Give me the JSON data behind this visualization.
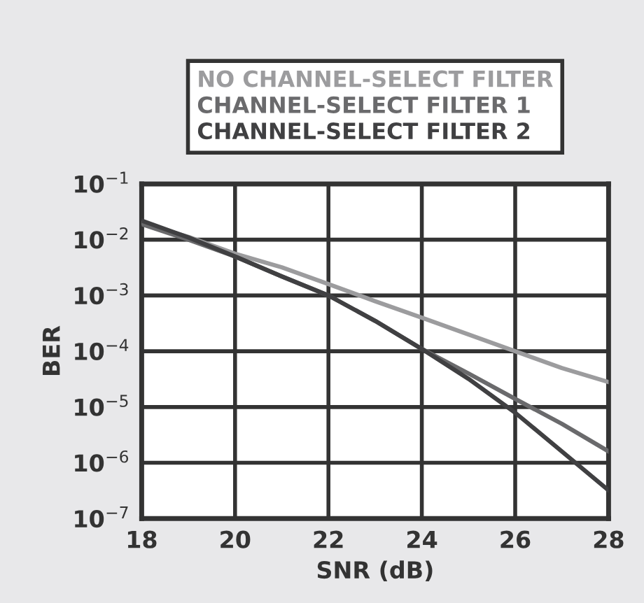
{
  "chart_data": {
    "type": "line",
    "xlabel": "SNR (dB)",
    "ylabel": "BER",
    "log": "y",
    "x": [
      18,
      19,
      20,
      21,
      22,
      23,
      24,
      25,
      26,
      27,
      28
    ],
    "series": [
      {
        "name": "NO CHANNEL-SELECT FILTER",
        "color": "#9c9c9e",
        "values": [
          0.02,
          0.0112,
          0.0056,
          0.0032,
          0.0016,
          0.00079,
          0.0004,
          0.0002,
          0.0001,
          5e-05,
          2.8e-05
        ]
      },
      {
        "name": "CHANNEL-SELECT FILTER 1",
        "color": "#6a6a6c",
        "values": [
          0.019,
          0.01,
          0.005,
          0.0022,
          0.001,
          0.00035,
          0.00011,
          4e-05,
          1.4e-05,
          5e-06,
          1.6e-06
        ]
      },
      {
        "name": "CHANNEL-SELECT FILTER 2",
        "color": "#404042",
        "values": [
          0.022,
          0.011,
          0.005,
          0.0022,
          0.001,
          0.00035,
          0.00011,
          3.2e-05,
          7.9e-06,
          1.6e-06,
          3.2e-07
        ]
      }
    ],
    "xlim": [
      18,
      28
    ],
    "xticks": [
      18,
      20,
      22,
      24,
      26,
      28
    ],
    "ylim": [
      1e-07,
      0.1
    ],
    "yticks": [
      {
        "value": 1e-07,
        "label": "10$^{−7}$"
      },
      {
        "value": 1e-06,
        "label": "10$^{−6}$"
      },
      {
        "value": 1e-05,
        "label": "10$^{−5}$"
      },
      {
        "value": 0.0001,
        "label": "10$^{−4}$"
      },
      {
        "value": 0.001,
        "label": "10$^{−3}$"
      },
      {
        "value": 0.01,
        "label": "10$^{−2}$"
      },
      {
        "value": 0.1,
        "label": "10$^{−1}$"
      }
    ],
    "grid": true,
    "legend": "top",
    "marker": "none",
    "line_style": "solid"
  }
}
